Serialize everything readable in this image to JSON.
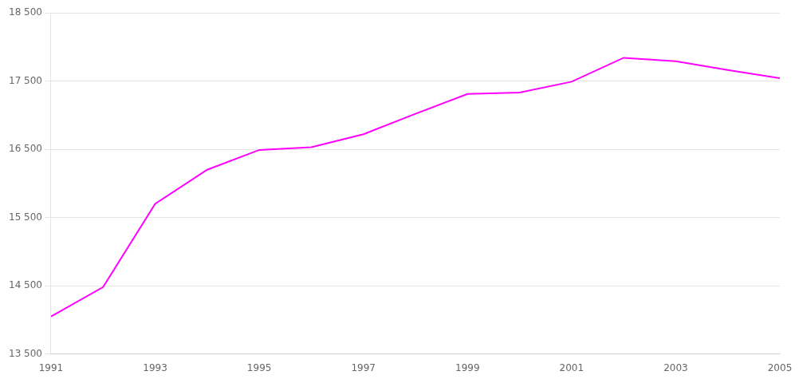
{
  "chart_data": {
    "type": "line",
    "x": [
      1991,
      1992,
      1993,
      1994,
      1995,
      1996,
      1997,
      1998,
      1999,
      2000,
      2001,
      2002,
      2003,
      2004,
      2005
    ],
    "values": [
      14050,
      14480,
      15700,
      16200,
      16490,
      16530,
      16720,
      17020,
      17310,
      17330,
      17490,
      17840,
      17790,
      17660,
      17540
    ],
    "color": "#FF00FF",
    "xlim": [
      1991,
      2005
    ],
    "ylim": [
      13500,
      18500
    ],
    "xticks": [
      1991,
      1993,
      1995,
      1997,
      1999,
      2001,
      2003,
      2005
    ],
    "yticks": [
      {
        "value": 13500,
        "label": "13 500"
      },
      {
        "value": 14500,
        "label": "14 500"
      },
      {
        "value": 15500,
        "label": "15 500"
      },
      {
        "value": 16500,
        "label": "16 500"
      },
      {
        "value": 17500,
        "label": "17 500"
      },
      {
        "value": 18500,
        "label": "18 500"
      }
    ],
    "grid": true
  }
}
